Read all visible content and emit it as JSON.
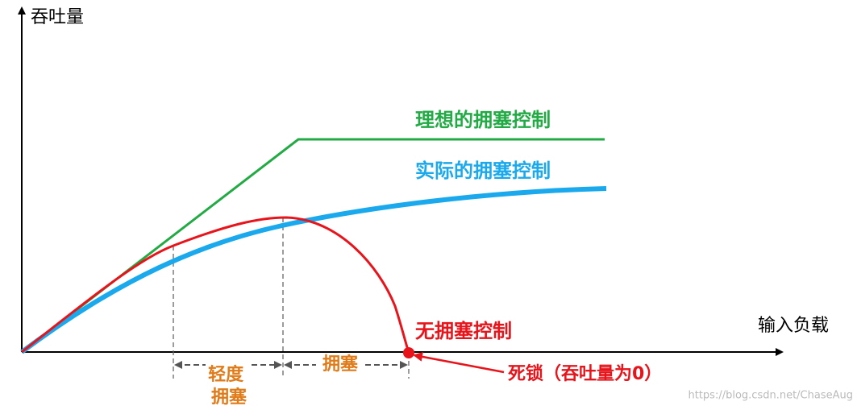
{
  "axes": {
    "y_label": "吞吐量",
    "x_label": "输入负载"
  },
  "curves": {
    "ideal": "理想的拥塞控制",
    "actual": "实际的拥塞控制",
    "none": "无拥塞控制"
  },
  "annotations": {
    "deadlock": "死锁（吞吐量为0）",
    "mild_congestion": [
      "轻度",
      "拥塞"
    ],
    "congestion": "拥塞"
  },
  "watermark": "https://blog.csdn.net/ChaseAug"
}
